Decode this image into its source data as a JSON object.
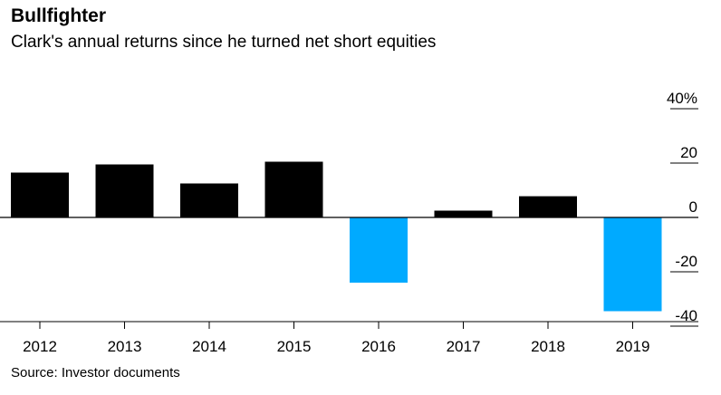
{
  "chart_data": {
    "type": "bar",
    "title": "Bullfighter",
    "subtitle": "Clark's annual returns since he turned net short equities",
    "source": "Source: Investor documents",
    "categories": [
      "2012",
      "2013",
      "2014",
      "2015",
      "2016",
      "2017",
      "2018",
      "2019"
    ],
    "values": [
      16.5,
      19.5,
      12.5,
      20.5,
      -24,
      2.5,
      7.8,
      -34.5
    ],
    "ylim": [
      -40,
      40
    ],
    "yticks": [
      {
        "value": 40,
        "label": "40%"
      },
      {
        "value": 20,
        "label": "20"
      },
      {
        "value": 0,
        "label": "0"
      },
      {
        "value": -20,
        "label": "-20"
      },
      {
        "value": -40,
        "label": "-40"
      }
    ],
    "colors": {
      "positive": "#000000",
      "negative": "#00AAFF",
      "axis": "#000000"
    },
    "grid": false
  }
}
